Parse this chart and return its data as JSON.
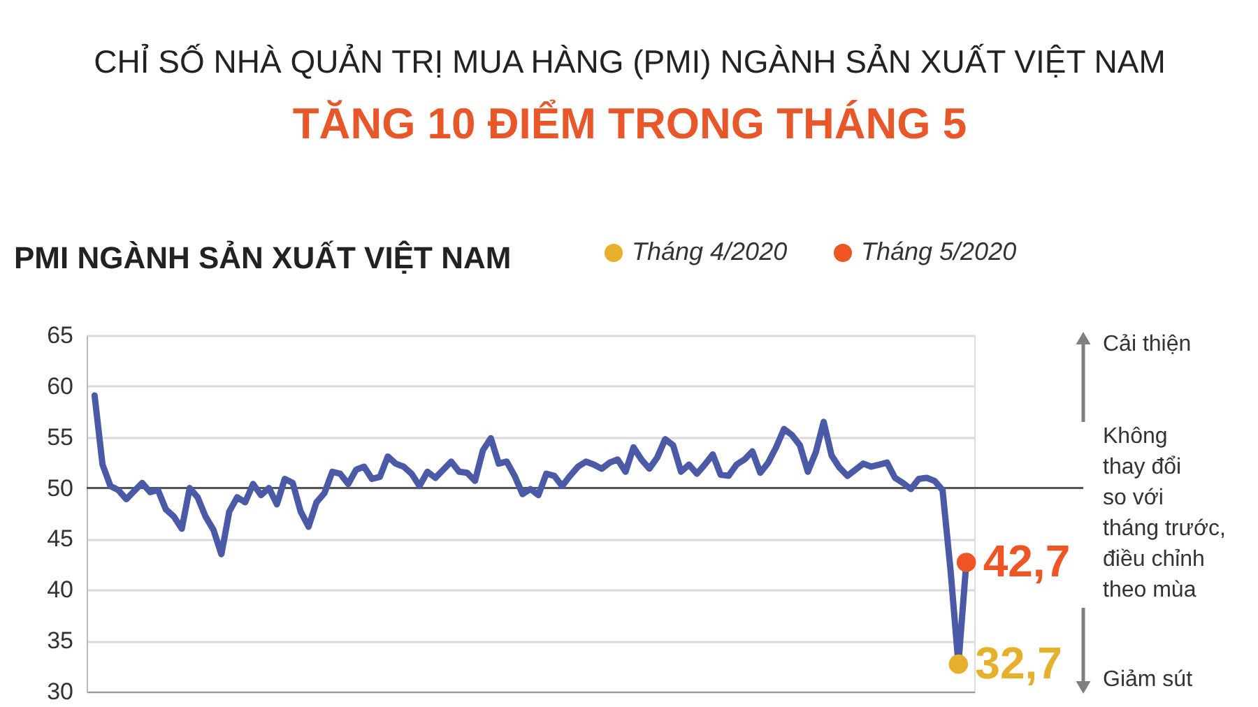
{
  "chart_data": {
    "type": "line",
    "title": "CHỈ SỐ NHÀ QUẢN TRỊ MUA HÀNG (PMI) NGÀNH SẢN XUẤT VIỆT NAM",
    "subtitle": "TĂNG 10 ĐIỂM TRONG THÁNG 5",
    "annotations": [
      "PMI NGÀNH SẢN XUẤT VIỆT NAM",
      "Cải thiện",
      "Không\nthay đổi\nso với\ntháng trước,\nđiều chỉnh\ntheo mùa",
      "Giảm sút"
    ],
    "categories": [
      null,
      null,
      null,
      null,
      null,
      null,
      null,
      null,
      null,
      null,
      null,
      null,
      null,
      null,
      null,
      null,
      null,
      null,
      null,
      null,
      null,
      null,
      null,
      null,
      null,
      null,
      null,
      null,
      null,
      null,
      null,
      null,
      null,
      null,
      null,
      null,
      null,
      null,
      null,
      null,
      null,
      null,
      null,
      null,
      null,
      null,
      null,
      null,
      null,
      null,
      null,
      null,
      null,
      null,
      null,
      null,
      null,
      null,
      null,
      null,
      null,
      null,
      null,
      null,
      null,
      null,
      null,
      null,
      null,
      null,
      null,
      null,
      null,
      null,
      null,
      null,
      null,
      null,
      null,
      null,
      null,
      null,
      null,
      null,
      null,
      null,
      null,
      null,
      null,
      null,
      null,
      null,
      null,
      null,
      null,
      null,
      null,
      null,
      null,
      null,
      null,
      null,
      null,
      null,
      null,
      null,
      null,
      null,
      null,
      null,
      null
    ],
    "ylim": [
      30,
      65
    ],
    "yticks": [
      30,
      35,
      40,
      45,
      50,
      55,
      60,
      65
    ],
    "grid": "y",
    "tick_labels": "y",
    "legend": "top right",
    "ref_lines": [
      {
        "axis": "y",
        "value": 50,
        "color": "#555555"
      }
    ],
    "series": [
      {
        "color": "#4a5aa6",
        "values": [
          59.1,
          52.3,
          50.2,
          49.8,
          48.9,
          49.7,
          50.5,
          49.6,
          49.8,
          47.9,
          47.2,
          46.0,
          50.0,
          49.1,
          47.2,
          45.9,
          43.5,
          47.7,
          49.1,
          48.6,
          50.4,
          49.3,
          50.0,
          48.4,
          50.9,
          50.5,
          47.7,
          46.2,
          48.6,
          49.5,
          51.6,
          51.4,
          50.4,
          51.8,
          52.1,
          50.9,
          51.1,
          53.1,
          52.4,
          52.1,
          51.4,
          50.2,
          51.6,
          51.0,
          51.8,
          52.6,
          51.6,
          51.5,
          50.7,
          53.7,
          54.9,
          52.4,
          52.6,
          51.2,
          49.4,
          49.9,
          49.3,
          51.4,
          51.2,
          50.2,
          51.2,
          52.1,
          52.6,
          52.3,
          51.9,
          52.5,
          52.8,
          51.6,
          54.0,
          52.8,
          51.9,
          53.0,
          54.8,
          54.2,
          51.6,
          52.3,
          51.4,
          52.3,
          53.3,
          51.3,
          51.2,
          52.3,
          52.8,
          53.6,
          51.5,
          52.5,
          54.0,
          55.8,
          55.2,
          54.2,
          51.6,
          53.5,
          56.5,
          53.2,
          52.0,
          51.2,
          51.8,
          52.4,
          52.1,
          52.3,
          52.5,
          51.0,
          50.5,
          49.9,
          50.9,
          51.0,
          50.7,
          49.8,
          42.0,
          32.7,
          42.7
        ]
      },
      {
        "type": "scatter",
        "name": "Tháng 4/2020",
        "color": "#e6b02c",
        "values": [
          null,
          null,
          null,
          null,
          null,
          null,
          null,
          null,
          null,
          null,
          null,
          null,
          null,
          null,
          null,
          null,
          null,
          null,
          null,
          null,
          null,
          null,
          null,
          null,
          null,
          null,
          null,
          null,
          null,
          null,
          null,
          null,
          null,
          null,
          null,
          null,
          null,
          null,
          null,
          null,
          null,
          null,
          null,
          null,
          null,
          null,
          null,
          null,
          null,
          null,
          null,
          null,
          null,
          null,
          null,
          null,
          null,
          null,
          null,
          null,
          null,
          null,
          null,
          null,
          null,
          null,
          null,
          null,
          null,
          null,
          null,
          null,
          null,
          null,
          null,
          null,
          null,
          null,
          null,
          null,
          null,
          null,
          null,
          null,
          null,
          null,
          null,
          null,
          null,
          null,
          null,
          null,
          null,
          null,
          null,
          null,
          null,
          null,
          null,
          null,
          null,
          null,
          null,
          null,
          null,
          null,
          null,
          null,
          null,
          32.7,
          null
        ],
        "value_labels": [
          null,
          null,
          null,
          null,
          null,
          null,
          null,
          null,
          null,
          null,
          null,
          null,
          null,
          null,
          null,
          null,
          null,
          null,
          null,
          null,
          null,
          null,
          null,
          null,
          null,
          null,
          null,
          null,
          null,
          null,
          null,
          null,
          null,
          null,
          null,
          null,
          null,
          null,
          null,
          null,
          null,
          null,
          null,
          null,
          null,
          null,
          null,
          null,
          null,
          null,
          null,
          null,
          null,
          null,
          null,
          null,
          null,
          null,
          null,
          null,
          null,
          null,
          null,
          null,
          null,
          null,
          null,
          null,
          null,
          null,
          null,
          null,
          null,
          null,
          null,
          null,
          null,
          null,
          null,
          null,
          null,
          null,
          null,
          null,
          null,
          null,
          null,
          null,
          null,
          null,
          null,
          null,
          null,
          null,
          null,
          null,
          null,
          null,
          null,
          null,
          null,
          null,
          null,
          null,
          null,
          null,
          null,
          null,
          null,
          "32,7",
          null
        ]
      },
      {
        "type": "scatter",
        "name": "Tháng 5/2020",
        "color": "#ee5424",
        "values": [
          null,
          null,
          null,
          null,
          null,
          null,
          null,
          null,
          null,
          null,
          null,
          null,
          null,
          null,
          null,
          null,
          null,
          null,
          null,
          null,
          null,
          null,
          null,
          null,
          null,
          null,
          null,
          null,
          null,
          null,
          null,
          null,
          null,
          null,
          null,
          null,
          null,
          null,
          null,
          null,
          null,
          null,
          null,
          null,
          null,
          null,
          null,
          null,
          null,
          null,
          null,
          null,
          null,
          null,
          null,
          null,
          null,
          null,
          null,
          null,
          null,
          null,
          null,
          null,
          null,
          null,
          null,
          null,
          null,
          null,
          null,
          null,
          null,
          null,
          null,
          null,
          null,
          null,
          null,
          null,
          null,
          null,
          null,
          null,
          null,
          null,
          null,
          null,
          null,
          null,
          null,
          null,
          null,
          null,
          null,
          null,
          null,
          null,
          null,
          null,
          null,
          null,
          null,
          null,
          null,
          null,
          null,
          null,
          null,
          null,
          42.7
        ],
        "value_labels": [
          null,
          null,
          null,
          null,
          null,
          null,
          null,
          null,
          null,
          null,
          null,
          null,
          null,
          null,
          null,
          null,
          null,
          null,
          null,
          null,
          null,
          null,
          null,
          null,
          null,
          null,
          null,
          null,
          null,
          null,
          null,
          null,
          null,
          null,
          null,
          null,
          null,
          null,
          null,
          null,
          null,
          null,
          null,
          null,
          null,
          null,
          null,
          null,
          null,
          null,
          null,
          null,
          null,
          null,
          null,
          null,
          null,
          null,
          null,
          null,
          null,
          null,
          null,
          null,
          null,
          null,
          null,
          null,
          null,
          null,
          null,
          null,
          null,
          null,
          null,
          null,
          null,
          null,
          null,
          null,
          null,
          null,
          null,
          null,
          null,
          null,
          null,
          null,
          null,
          null,
          null,
          null,
          null,
          null,
          null,
          null,
          null,
          null,
          null,
          null,
          null,
          null,
          null,
          null,
          null,
          null,
          null,
          null,
          null,
          null,
          "42,7"
        ]
      }
    ]
  }
}
